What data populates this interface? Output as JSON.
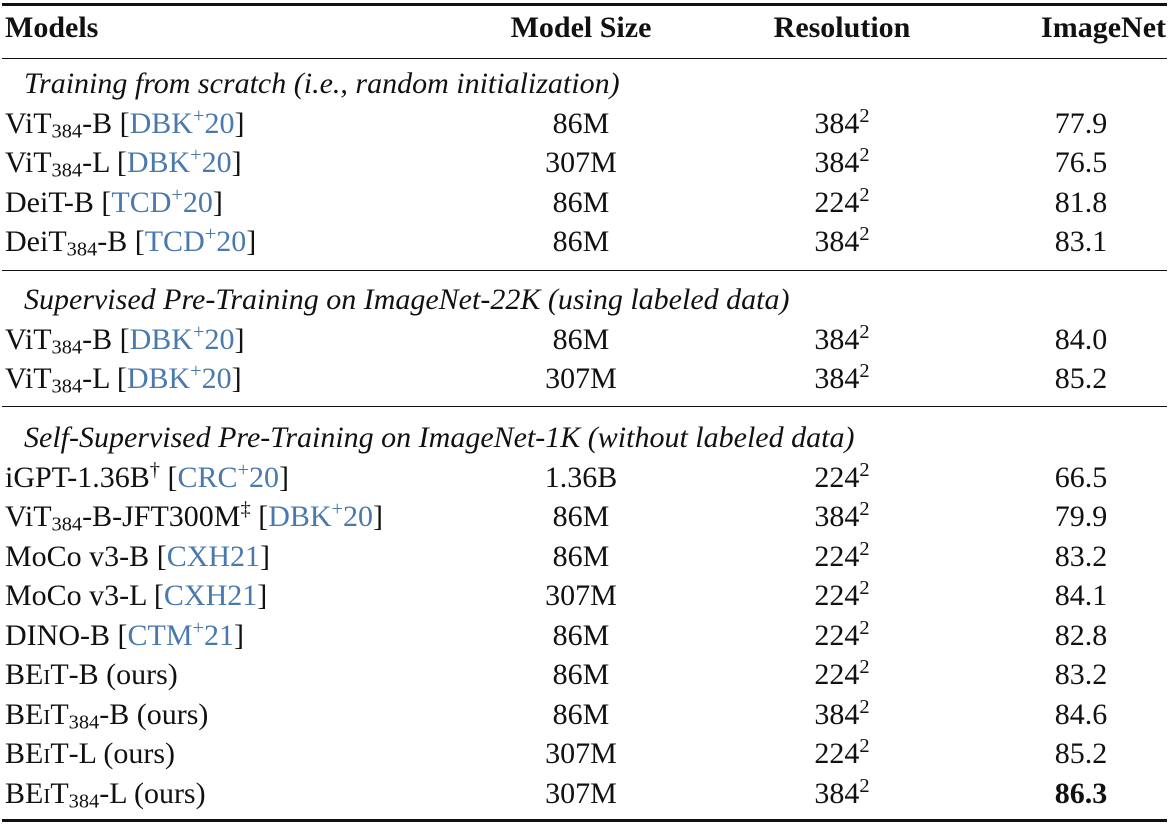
{
  "headers": {
    "models": "Models",
    "model_size": "Model Size",
    "resolution": "Resolution",
    "imagenet": "ImageNet"
  },
  "sections": [
    {
      "title": "Training from scratch (i.e., random initialization)",
      "rows": [
        {
          "name": "ViT",
          "sub": "384",
          "suffix": "-B",
          "cite": "DBK",
          "cite_sup": "+",
          "cite_year": "20",
          "size": "86M",
          "res": "384",
          "res_exp": "2",
          "imagenet": "77.9"
        },
        {
          "name": "ViT",
          "sub": "384",
          "suffix": "-L",
          "cite": "DBK",
          "cite_sup": "+",
          "cite_year": "20",
          "size": "307M",
          "res": "384",
          "res_exp": "2",
          "imagenet": "76.5"
        },
        {
          "name": "DeiT",
          "sub": "",
          "suffix": "-B",
          "cite": "TCD",
          "cite_sup": "+",
          "cite_year": "20",
          "size": "86M",
          "res": "224",
          "res_exp": "2",
          "imagenet": "81.8"
        },
        {
          "name": "DeiT",
          "sub": "384",
          "suffix": "-B",
          "cite": "TCD",
          "cite_sup": "+",
          "cite_year": "20",
          "size": "86M",
          "res": "384",
          "res_exp": "2",
          "imagenet": "83.1"
        }
      ]
    },
    {
      "title": "Supervised Pre-Training on ImageNet-22K (using labeled data)",
      "rows": [
        {
          "name": "ViT",
          "sub": "384",
          "suffix": "-B",
          "cite": "DBK",
          "cite_sup": "+",
          "cite_year": "20",
          "size": "86M",
          "res": "384",
          "res_exp": "2",
          "imagenet": "84.0"
        },
        {
          "name": "ViT",
          "sub": "384",
          "suffix": "-L",
          "cite": "DBK",
          "cite_sup": "+",
          "cite_year": "20",
          "size": "307M",
          "res": "384",
          "res_exp": "2",
          "imagenet": "85.2"
        }
      ]
    },
    {
      "title": "Self-Supervised Pre-Training on ImageNet-1K (without labeled data)",
      "rows": [
        {
          "name": "iGPT-1.36B",
          "sub": "",
          "mark": "†",
          "suffix": "",
          "cite": "CRC",
          "cite_sup": "+",
          "cite_year": "20",
          "size": "1.36B",
          "res": "224",
          "res_exp": "2",
          "imagenet": "66.5"
        },
        {
          "name": "ViT",
          "sub": "384",
          "suffix": "-B-JFT300M",
          "mark": "‡",
          "cite": "DBK",
          "cite_sup": "+",
          "cite_year": "20",
          "size": "86M",
          "res": "384",
          "res_exp": "2",
          "imagenet": "79.9"
        },
        {
          "name": "MoCo v3-B",
          "sub": "",
          "suffix": "",
          "cite": "CXH21",
          "cite_sup": "",
          "cite_year": "",
          "size": "86M",
          "res": "224",
          "res_exp": "2",
          "imagenet": "83.2"
        },
        {
          "name": "MoCo v3-L",
          "sub": "",
          "suffix": "",
          "cite": "CXH21",
          "cite_sup": "",
          "cite_year": "",
          "size": "307M",
          "res": "224",
          "res_exp": "2",
          "imagenet": "84.1"
        },
        {
          "name": "DINO-B",
          "sub": "",
          "suffix": "",
          "cite": "CTM",
          "cite_sup": "+",
          "cite_year": "21",
          "size": "86M",
          "res": "224",
          "res_exp": "2",
          "imagenet": "82.8"
        },
        {
          "beit": true,
          "name": "BEiT",
          "sub": "",
          "suffix": "-B (ours)",
          "size": "86M",
          "res": "224",
          "res_exp": "2",
          "imagenet": "83.2"
        },
        {
          "beit": true,
          "name": "BEiT",
          "sub": "384",
          "suffix": "-B (ours)",
          "size": "86M",
          "res": "384",
          "res_exp": "2",
          "imagenet": "84.6"
        },
        {
          "beit": true,
          "name": "BEiT",
          "sub": "",
          "suffix": "-L (ours)",
          "size": "307M",
          "res": "224",
          "res_exp": "2",
          "imagenet": "85.2"
        },
        {
          "beit": true,
          "name": "BEiT",
          "sub": "384",
          "suffix": "-L (ours)",
          "size": "307M",
          "res": "384",
          "res_exp": "2",
          "imagenet": "86.3",
          "bold": true
        }
      ]
    }
  ]
}
